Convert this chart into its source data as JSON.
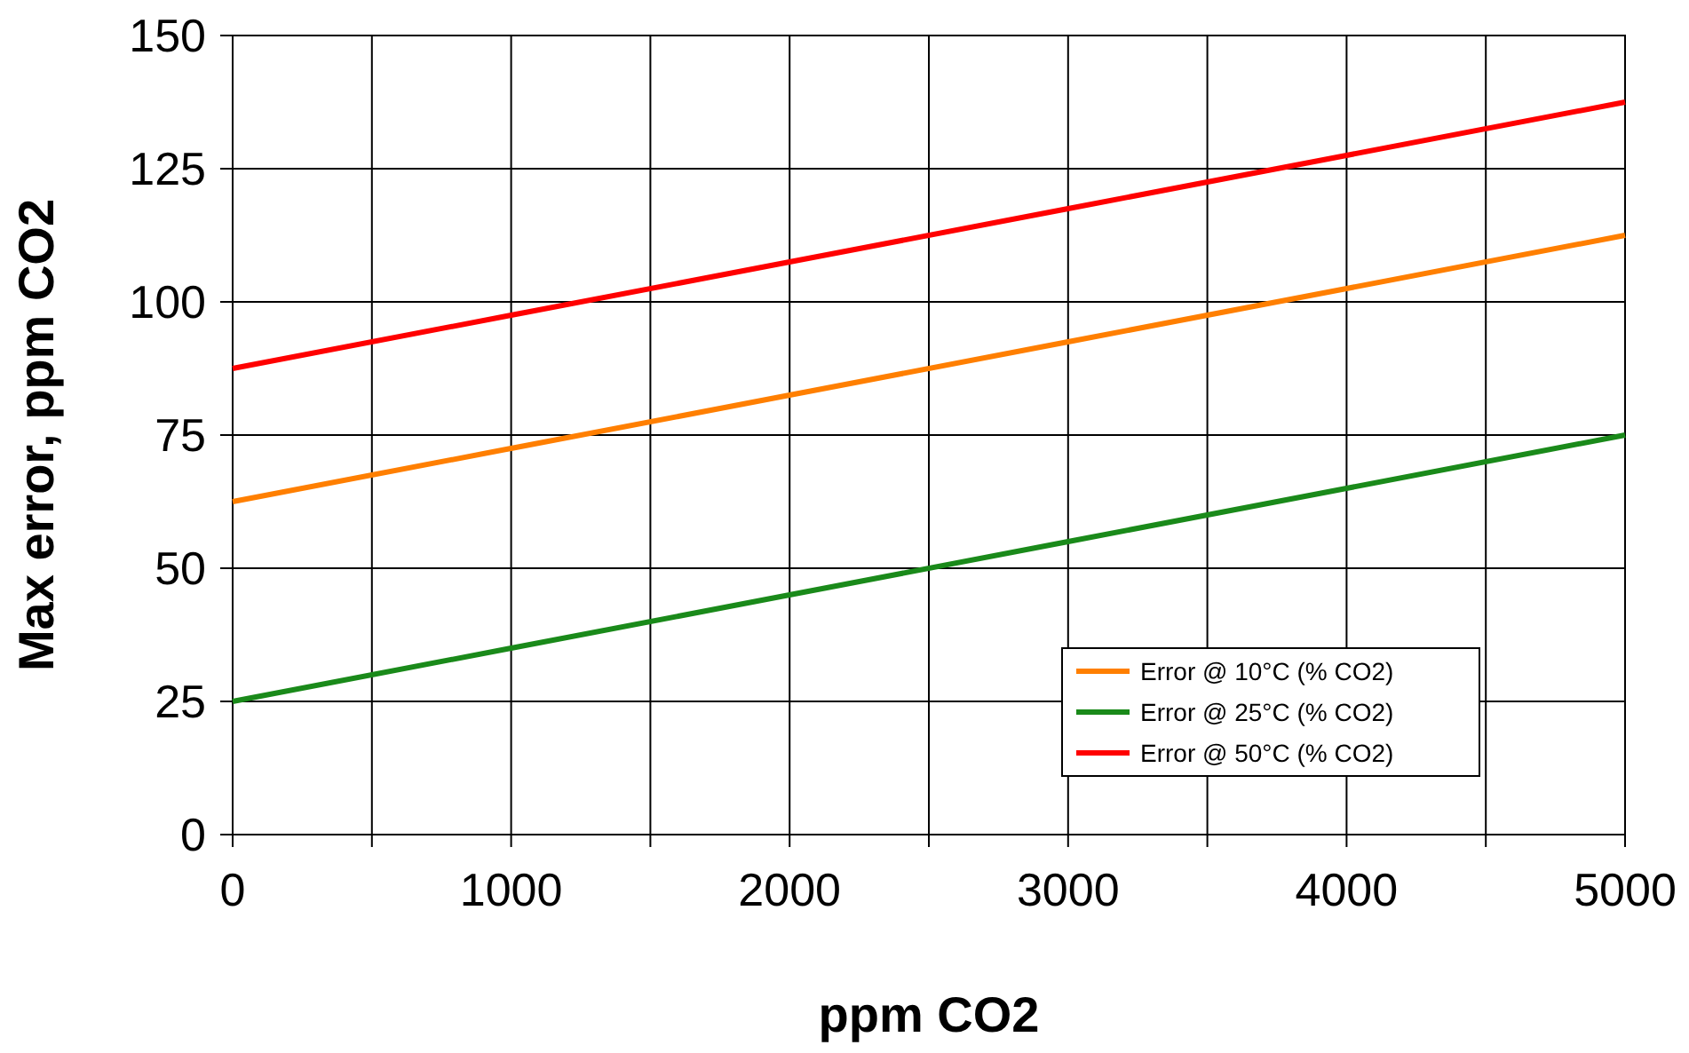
{
  "chart_data": {
    "type": "line",
    "xlabel": "ppm CO2",
    "ylabel": "Max error, ppm CO2",
    "xlim": [
      0,
      5000
    ],
    "ylim": [
      0,
      150
    ],
    "xticks": [
      0,
      {
        "value": 500,
        "label": null
      },
      1000,
      {
        "value": 1500,
        "label": null
      },
      2000,
      {
        "value": 2500,
        "label": null
      },
      3000,
      {
        "value": 3500,
        "label": null
      },
      4000,
      {
        "value": 4500,
        "label": null
      },
      5000
    ],
    "yticks": [
      0,
      25,
      50,
      75,
      100,
      125,
      150
    ],
    "x": [
      0,
      1000,
      2000,
      3000,
      4000,
      5000
    ],
    "grid": true,
    "legend": "bottom right",
    "marker": "none",
    "line_style": "solid",
    "series": [
      {
        "name": "Error @ 10°C (%  CO2)",
        "color": "#ff7f00",
        "values": [
          62.5,
          72.5,
          82.5,
          92.5,
          102.5,
          112.5
        ]
      },
      {
        "name": "Error @ 25°C (%  CO2)",
        "color": "#1a8a1a",
        "values": [
          25,
          35,
          45,
          55,
          65,
          75
        ]
      },
      {
        "name": "Error @ 50°C (%  CO2)",
        "color": "#ff0000",
        "values": [
          87.5,
          97.5,
          107.5,
          117.5,
          127.5,
          137.5
        ]
      }
    ]
  }
}
